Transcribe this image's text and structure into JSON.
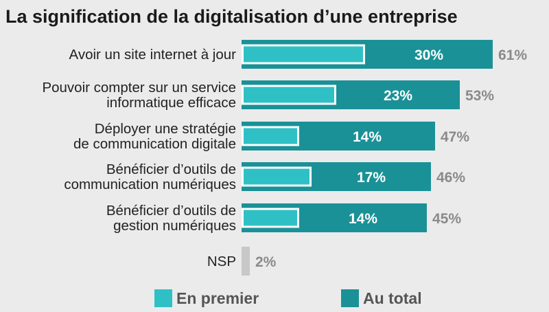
{
  "chart_data": {
    "type": "bar",
    "orientation": "horizontal",
    "stacked": "overlay",
    "title": "La signification de la digitalisation d’une entreprise",
    "categories": [
      [
        "Avoir un site internet à jour"
      ],
      [
        "Pouvoir compter sur un service",
        "informatique efficace"
      ],
      [
        "Déployer une stratégie",
        "de communication digitale"
      ],
      [
        "Bénéficier d’outils de",
        "communication numériques"
      ],
      [
        "Bénéficier d’outils de",
        "gestion numériques"
      ],
      [
        "NSP"
      ]
    ],
    "series": [
      {
        "name": "En premier",
        "color": "#2fc0c6",
        "values": [
          30,
          23,
          14,
          17,
          14,
          null
        ],
        "labels": [
          "30%",
          "23%",
          "14%",
          "17%",
          "14%",
          ""
        ]
      },
      {
        "name": "Au total",
        "color": "#1a9197",
        "values": [
          61,
          53,
          47,
          46,
          45,
          2
        ],
        "labels": [
          "61%",
          "53%",
          "47%",
          "46%",
          "45%",
          "2%"
        ]
      }
    ],
    "nsp_color": "#c8c8c8",
    "xlim": [
      0,
      61
    ],
    "grid": false,
    "legend_position": "bottom"
  },
  "legend": [
    {
      "label": "En premier",
      "color": "#2fc0c6"
    },
    {
      "label": "Au total",
      "color": "#1a9197"
    }
  ]
}
